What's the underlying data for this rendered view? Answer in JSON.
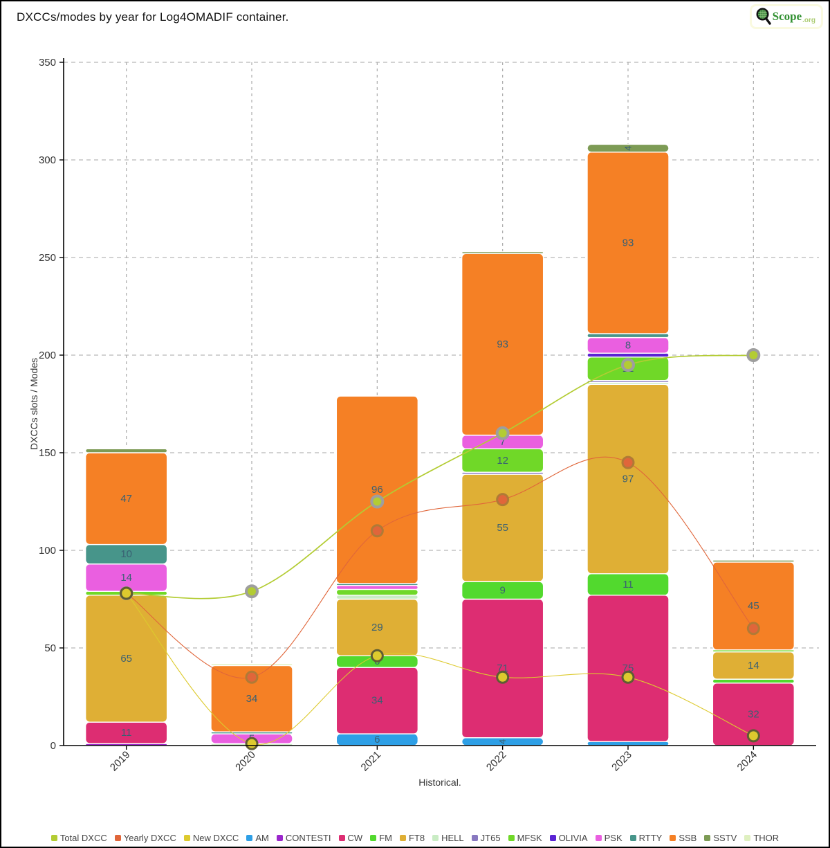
{
  "header": {
    "title": "DXCCs/modes by year for Log4OMADIF container.",
    "logo": {
      "scope": "Scope",
      "org": ".org"
    }
  },
  "chart_data": {
    "type": "bar",
    "title": "DXCCs/modes by year for Log4OMADIF container.",
    "xlabel": "Historical.",
    "ylabel": "DXCCs slots / Modes",
    "ylim": [
      0,
      350
    ],
    "yticks": [
      0,
      50,
      100,
      150,
      200,
      250,
      300,
      350
    ],
    "grid": "dashed",
    "legend_position": "bottom",
    "categories": [
      "2019",
      "2020",
      "2021",
      "2022",
      "2023",
      "2024"
    ],
    "label_color": "#3a6073",
    "bar_series": [
      {
        "name": "AM",
        "color": "#2e9fe6",
        "values": [
          0,
          0,
          6,
          4,
          2,
          0
        ]
      },
      {
        "name": "CONTESTI",
        "color": "#9b26cc",
        "values": [
          1,
          0,
          0,
          0,
          0,
          0
        ]
      },
      {
        "name": "CW",
        "color": "#dd2d72",
        "values": [
          11,
          0,
          34,
          71,
          75,
          32
        ]
      },
      {
        "name": "FM",
        "color": "#52d92e",
        "values": [
          0,
          0,
          6,
          9,
          11,
          2
        ]
      },
      {
        "name": "FT8",
        "color": "#dfaf35",
        "values": [
          65,
          0,
          29,
          55,
          97,
          14
        ]
      },
      {
        "name": "HELL",
        "color": "#c9ecc4",
        "values": [
          0,
          1,
          2,
          0,
          1,
          0
        ]
      },
      {
        "name": "JT65",
        "color": "#8878c0",
        "values": [
          0,
          0,
          0,
          1,
          1,
          0
        ]
      },
      {
        "name": "MFSK",
        "color": "#70d828",
        "values": [
          2,
          0,
          3,
          12,
          12,
          1
        ]
      },
      {
        "name": "OLIVIA",
        "color": "#5a23d4",
        "values": [
          0,
          0,
          0,
          0,
          2,
          0
        ]
      },
      {
        "name": "PSK",
        "color": "#ea5fe0",
        "values": [
          14,
          5,
          2,
          7,
          8,
          0
        ]
      },
      {
        "name": "RTTY",
        "color": "#47958a",
        "values": [
          10,
          1,
          1,
          0,
          2,
          0
        ]
      },
      {
        "name": "SSB",
        "color": "#f58025",
        "values": [
          47,
          34,
          96,
          93,
          93,
          45
        ]
      },
      {
        "name": "SSTV",
        "color": "#7d9b55",
        "values": [
          2,
          0,
          0,
          1,
          4,
          1
        ]
      },
      {
        "name": "THOR",
        "color": "#dff0c0",
        "values": [
          0,
          1,
          0,
          0,
          0,
          0
        ]
      }
    ],
    "line_series": [
      {
        "name": "Total DXCC",
        "color": "#b3cc33",
        "marker_ring": "#9e9e9e",
        "values": [
          78,
          79,
          125,
          160,
          195,
          200
        ]
      },
      {
        "name": "Yearly DXCC",
        "color": "#e0663a",
        "marker_ring": "#b07a36",
        "values": [
          78,
          35,
          110,
          126,
          145,
          60
        ]
      },
      {
        "name": "New DXCC",
        "color": "#ddca2e",
        "marker_ring": "#5f5d33",
        "values": [
          78,
          1,
          46,
          35,
          35,
          5
        ]
      }
    ]
  }
}
